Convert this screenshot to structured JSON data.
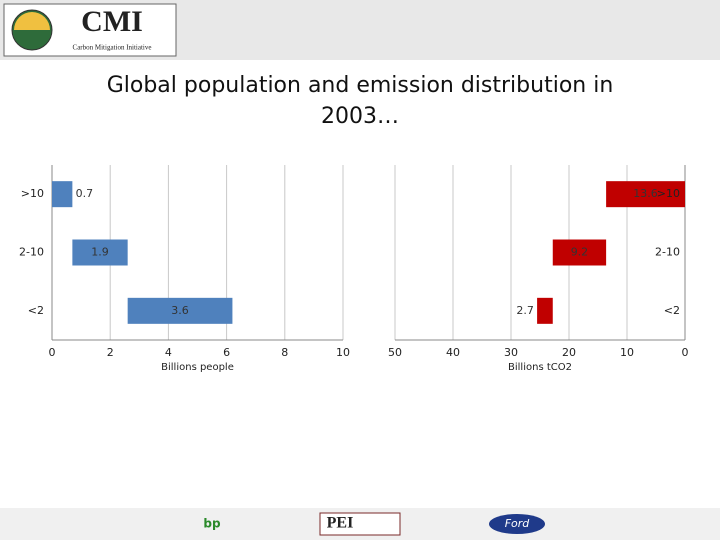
{
  "slide": {
    "logo": "CMI",
    "logo_subtitle": "Carbon Mitigation Initiative",
    "title": "Global population and emission distribution in 2003…",
    "footer_logos": [
      "bp",
      "PEI",
      "Ford"
    ]
  },
  "chart_data": [
    {
      "type": "waterfall",
      "categories": [
        ">10",
        "2-10",
        "<2"
      ],
      "values": [
        0.7,
        1.9,
        3.6
      ],
      "color": "#4f81bd",
      "xlim": [
        0,
        10
      ],
      "xticks": [
        0,
        2,
        4,
        6,
        8,
        10
      ],
      "xlabel": "Billions people",
      "grid": true
    },
    {
      "type": "waterfall",
      "categories": [
        ">10",
        "2-10",
        "<2"
      ],
      "values": [
        13.6,
        9.2,
        2.7
      ],
      "color": "#c00000",
      "xlim": [
        50,
        0
      ],
      "xticks": [
        50,
        40,
        30,
        20,
        10,
        0
      ],
      "xlabel": "Billions tCO2",
      "grid": true
    }
  ]
}
